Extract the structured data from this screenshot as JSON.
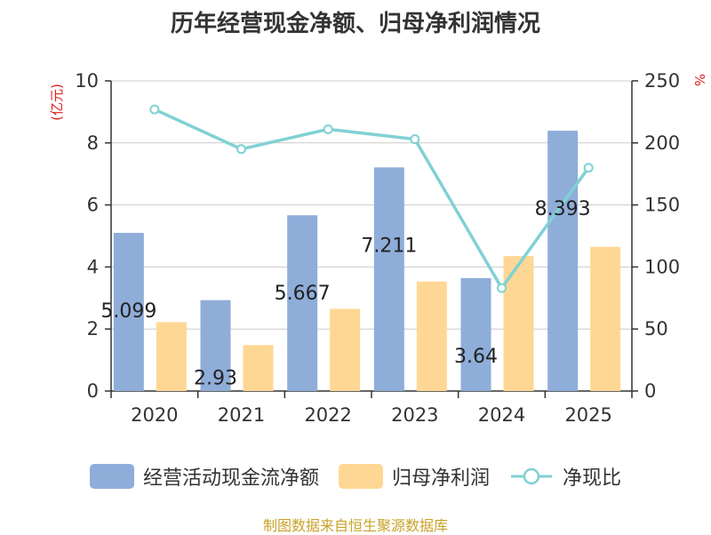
{
  "chart_data": {
    "type": "bar",
    "title": "历年经营现金净额、归母净利润情况",
    "categories": [
      "2020",
      "2021",
      "2022",
      "2023",
      "2024",
      "2025"
    ],
    "series": [
      {
        "name": "经营活动现金流净额",
        "type": "bar",
        "axis": "left",
        "values": [
          5.099,
          2.93,
          5.667,
          7.211,
          3.64,
          8.393
        ],
        "labels": [
          "5.099",
          "2.93",
          "5.667",
          "7.211",
          "3.64",
          "8.393"
        ]
      },
      {
        "name": "归母净利润",
        "type": "bar",
        "axis": "left",
        "values": [
          2.22,
          1.48,
          2.65,
          3.53,
          4.35,
          4.65
        ]
      },
      {
        "name": "净现比",
        "type": "line",
        "axis": "right",
        "values": [
          227,
          195,
          211,
          203,
          83,
          180
        ]
      }
    ],
    "ylabel": "(亿元)",
    "y2label": "%",
    "ylim": [
      0,
      10
    ],
    "y2lim": [
      0,
      250
    ],
    "yticks": [
      "0",
      "2",
      "4",
      "6",
      "8",
      "10"
    ],
    "y2ticks": [
      "0",
      "50",
      "100",
      "150",
      "200",
      "250"
    ],
    "grid": true,
    "legend_position": "bottom",
    "colors": {
      "bar1": "#8fadd9",
      "bar2": "#ffd794",
      "line": "#80d1d4",
      "axis_label": "#e02020"
    }
  },
  "footer": "制图数据来自恒生聚源数据库"
}
